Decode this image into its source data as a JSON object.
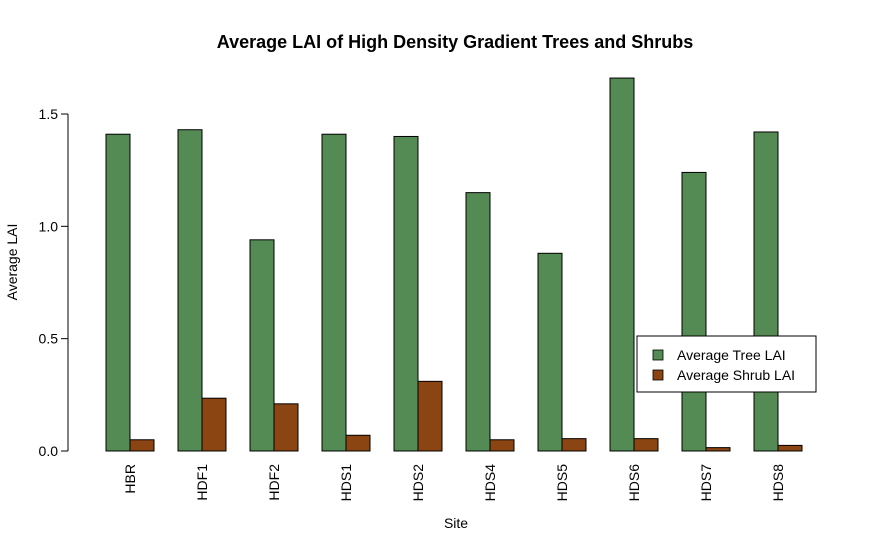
{
  "chart_data": {
    "type": "bar",
    "title": "Average LAI of High Density Gradient Trees and Shrubs",
    "xlabel": "Site",
    "ylabel": "Average LAI",
    "categories": [
      "HBR",
      "HDF1",
      "HDF2",
      "HDS1",
      "HDS2",
      "HDS4",
      "HDS5",
      "HDS6",
      "HDS7",
      "HDS8"
    ],
    "series": [
      {
        "name": "Average Tree LAI",
        "color": "#548b54",
        "values": [
          1.41,
          1.43,
          0.94,
          1.41,
          1.4,
          1.15,
          0.88,
          1.66,
          1.24,
          1.42
        ]
      },
      {
        "name": "Average Shrub LAI",
        "color": "#8b4513",
        "values": [
          0.05,
          0.235,
          0.21,
          0.07,
          0.31,
          0.05,
          0.055,
          0.055,
          0.015,
          0.025
        ]
      }
    ],
    "ylim": [
      0,
      1.5
    ],
    "yticks": [
      "0.0",
      "0.5",
      "1.0",
      "1.5"
    ],
    "grid": false,
    "legend_position": "right"
  }
}
